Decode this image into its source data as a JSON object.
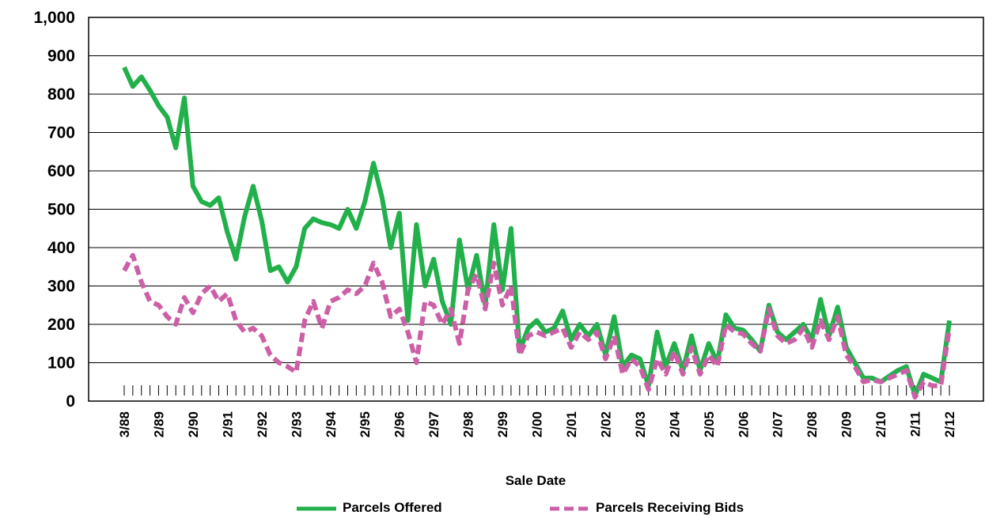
{
  "chart_data": {
    "type": "line",
    "xlabel": "Sale Date",
    "categories": [
      "3/88",
      null,
      null,
      null,
      "2/89",
      null,
      null,
      null,
      "2/90",
      null,
      null,
      null,
      "2/91",
      null,
      null,
      null,
      "2/92",
      null,
      null,
      null,
      "2/93",
      null,
      null,
      null,
      "2/94",
      null,
      null,
      null,
      "2/95",
      null,
      null,
      null,
      "2/96",
      null,
      null,
      null,
      "2/97",
      null,
      null,
      null,
      "2/98",
      null,
      null,
      null,
      "2/99",
      null,
      null,
      null,
      "2/00",
      null,
      null,
      null,
      "2/01",
      null,
      null,
      null,
      "2/02",
      null,
      null,
      null,
      "2/03",
      null,
      null,
      null,
      "2/04",
      null,
      null,
      null,
      "2/05",
      null,
      null,
      null,
      "2/06",
      null,
      null,
      null,
      "2/07",
      null,
      null,
      null,
      "2/08",
      null,
      null,
      null,
      "2/09",
      null,
      null,
      null,
      "2/10",
      null,
      null,
      null,
      "2/11",
      null,
      null,
      null,
      "2/12"
    ],
    "series": [
      {
        "name": "Parcels Offered",
        "color": "#22b04b",
        "style": "solid",
        "values": [
          870,
          820,
          845,
          810,
          770,
          740,
          660,
          790,
          560,
          520,
          510,
          530,
          440,
          370,
          480,
          560,
          470,
          340,
          350,
          310,
          350,
          450,
          475,
          465,
          460,
          450,
          500,
          450,
          520,
          620,
          530,
          400,
          490,
          210,
          460,
          300,
          370,
          260,
          200,
          420,
          290,
          380,
          250,
          460,
          290,
          450,
          130,
          190,
          210,
          180,
          190,
          235,
          160,
          200,
          170,
          200,
          120,
          220,
          90,
          120,
          110,
          40,
          180,
          90,
          150,
          80,
          170,
          80,
          150,
          100,
          225,
          190,
          185,
          160,
          130,
          250,
          180,
          160,
          180,
          200,
          160,
          265,
          170,
          245,
          140,
          100,
          60,
          60,
          50,
          65,
          80,
          90,
          15,
          70,
          60,
          50,
          210
        ]
      },
      {
        "name": "Parcels Receiving Bids",
        "color": "#cc5fa6",
        "style": "dashed",
        "values": [
          340,
          380,
          310,
          260,
          250,
          220,
          200,
          270,
          230,
          280,
          300,
          260,
          280,
          210,
          180,
          190,
          170,
          120,
          100,
          90,
          75,
          210,
          260,
          190,
          260,
          270,
          290,
          280,
          300,
          360,
          310,
          220,
          240,
          180,
          100,
          260,
          250,
          200,
          240,
          150,
          290,
          330,
          240,
          360,
          250,
          300,
          120,
          170,
          180,
          170,
          180,
          190,
          140,
          180,
          160,
          180,
          110,
          170,
          70,
          110,
          90,
          30,
          110,
          70,
          130,
          70,
          140,
          70,
          120,
          90,
          200,
          180,
          175,
          150,
          130,
          240,
          170,
          150,
          160,
          190,
          140,
          210,
          160,
          220,
          120,
          90,
          50,
          55,
          50,
          60,
          70,
          80,
          10,
          50,
          40,
          40,
          190
        ]
      }
    ],
    "ylim": [
      0,
      1000
    ],
    "yticks": [
      0,
      100,
      200,
      300,
      400,
      500,
      600,
      700,
      800,
      900,
      {
        "value": 1000,
        "label": "1,000"
      }
    ],
    "grid": true,
    "legend": "bottom"
  }
}
